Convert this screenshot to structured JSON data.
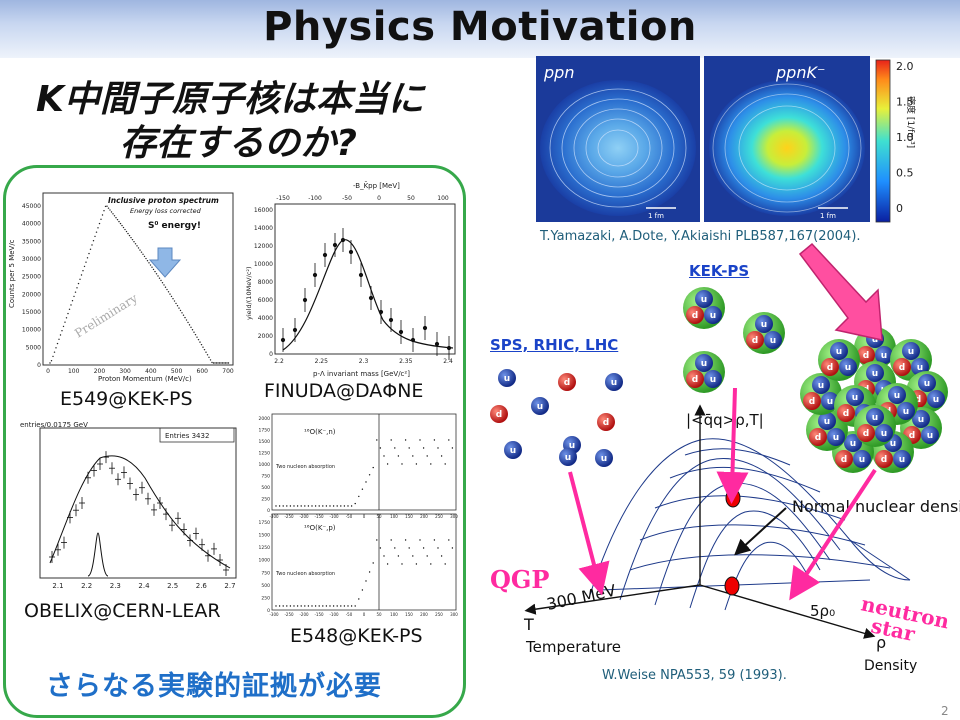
{
  "title": "Physics Motivation",
  "question": {
    "line1": "K中間子原子核は本当に",
    "line2": "存在するのか?"
  },
  "plots": {
    "e549": {
      "label": "E549@KEK-PS",
      "inner_title": "Inclusive proton spectrum",
      "inner_subtitle": "Energy loss corrected",
      "annotation": "S⁰ energy!",
      "watermark": "Preliminary",
      "xlabel": "Proton Momentum (MeV/c)",
      "ylabel": "Counts per 5 MeV/c",
      "yticks": [
        "0",
        "5000",
        "10000",
        "15000",
        "20000",
        "25000",
        "30000",
        "35000",
        "40000",
        "45000"
      ],
      "xticks": [
        "0",
        "100",
        "200",
        "300",
        "400",
        "500",
        "600",
        "700"
      ]
    },
    "finuda": {
      "label": "FINUDA@DAΦNE",
      "top_axis": "-B_K̄pp [MeV]",
      "top_ticks": [
        "-150",
        "-100",
        "-50",
        "0",
        "50",
        "100"
      ],
      "xlabel": "p-Λ invariant mass [GeV/c²]",
      "ylabel": "yield/(10MeV/c²)",
      "yticks": [
        "0",
        "2000",
        "4000",
        "6000",
        "8000",
        "10000",
        "12000",
        "14000",
        "16000"
      ],
      "xticks": [
        "2.2",
        "2.25",
        "2.3",
        "2.35",
        "2.4"
      ]
    },
    "obelix": {
      "label": "OBELIX@CERN-LEAR",
      "header": "entries/0.0175 GeV",
      "stats": "Entries 3432",
      "xticks": [
        "2.1",
        "2.2",
        "2.3",
        "2.4",
        "2.5",
        "2.6",
        "2.7"
      ]
    },
    "e548": {
      "label": "E548@KEK-PS",
      "panel1_label": "¹⁶O(K⁻,n)",
      "panel2_label": "¹⁶O(K⁻,p)",
      "annotation": "Two nucleon absorption",
      "yticks_top": [
        "0",
        "250",
        "500",
        "750",
        "1000",
        "1250",
        "1500",
        "1750",
        "2000"
      ],
      "yticks_bottom": [
        "0",
        "250",
        "500",
        "750",
        "1000",
        "1250",
        "1500",
        "1750"
      ],
      "xticks": [
        "-300",
        "-250",
        "-200",
        "-150",
        "-100",
        "-50",
        "0",
        "50",
        "100",
        "150",
        "200",
        "250",
        "300"
      ]
    }
  },
  "need_more": "さらなる実験的証拠が必要",
  "density": {
    "panel_left": "ppn",
    "panel_right": "ppnK⁻",
    "colorbar_label": "密度 [1/fm³]",
    "colorbar_ticks": [
      "0",
      "0.5",
      "1.0",
      "1.5",
      "2.0"
    ],
    "scale_label": "1 fm",
    "citation": "T.Yamazaki, A.Dote, Y.Akiaishi PLB587,167(2004)."
  },
  "labels": {
    "kek_ps": "KEK-PS",
    "sps": "SPS, RHIC, LHC",
    "qgp": "QGP",
    "neutron": "neutron",
    "star": "star"
  },
  "phase": {
    "condensate": "|<q̄q>ρ,T|",
    "normal_density": "Normal nuclear density",
    "temp_scale": "300 MeV",
    "rho_scale": "5ρ₀",
    "t_axis": "T",
    "t_label": "Temperature",
    "rho_axis": "ρ",
    "rho_label": "Density",
    "citation": "W.Weise NPA553, 59 (1993)."
  },
  "quarks": {
    "u": "u",
    "d": "d"
  },
  "colors": {
    "green_box": "#36a84a",
    "magenta": "#ff2aa0",
    "link": "#1a43c8",
    "need": "#1f6fc8"
  },
  "slide_number": "2"
}
